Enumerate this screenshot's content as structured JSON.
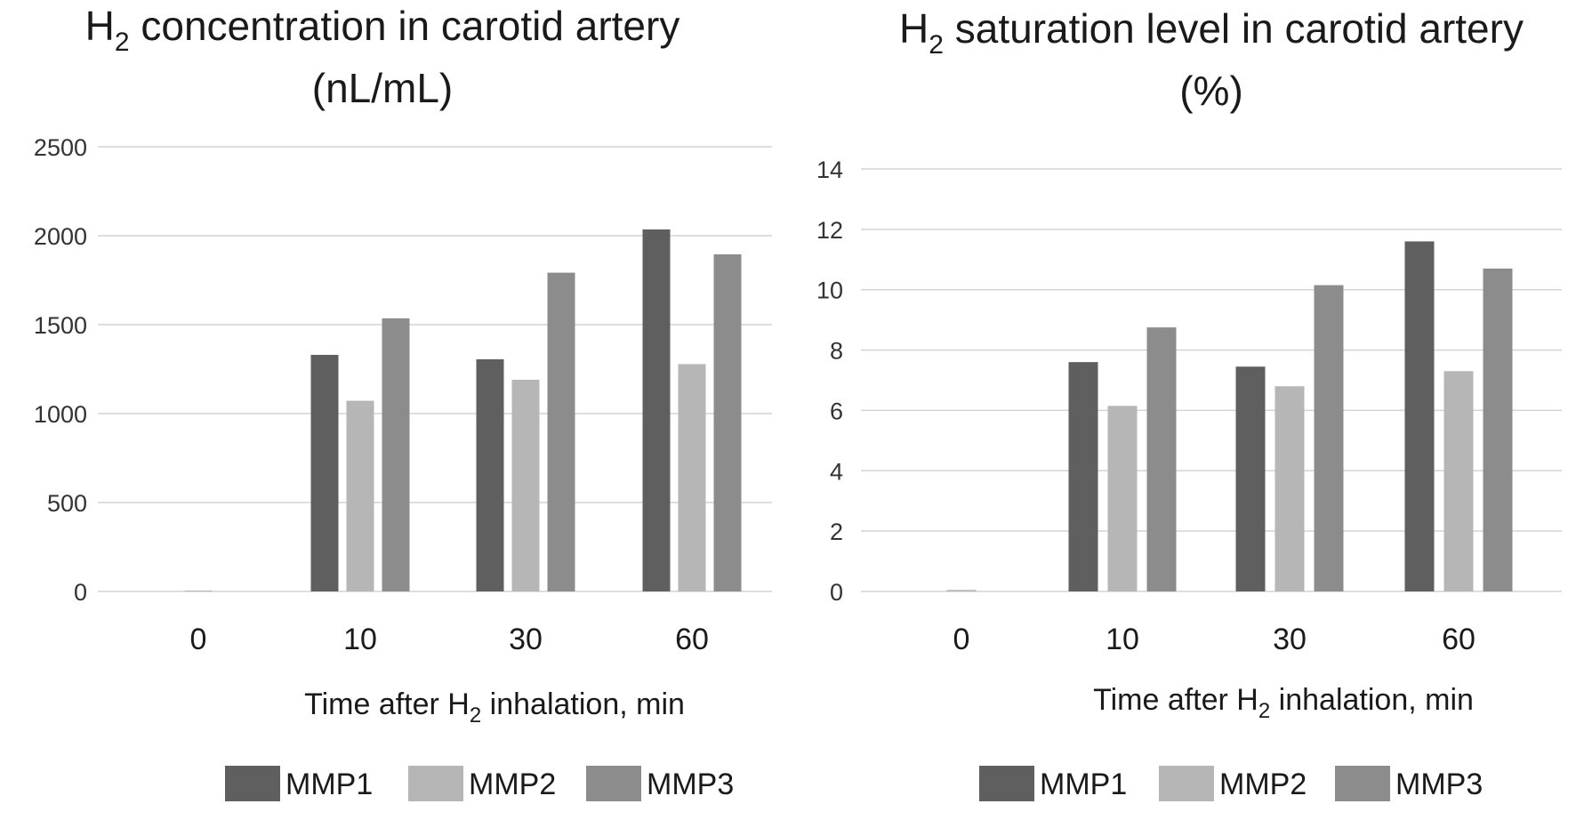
{
  "chart_data": [
    {
      "type": "bar",
      "title": "H2 concentration in carotid artery (nL/mL)",
      "title_parts": {
        "main": "H",
        "sub": "2",
        "rest": " concentration in carotid artery",
        "line2": "(nL/mL)"
      },
      "categories": [
        "0",
        "10",
        "30",
        "60"
      ],
      "series": [
        {
          "name": "MMP1",
          "color": "#5f5f5f",
          "values": [
            0,
            1330,
            1305,
            2035
          ]
        },
        {
          "name": "MMP2",
          "color": "#b6b6b6",
          "values": [
            5,
            1072,
            1190,
            1278
          ]
        },
        {
          "name": "MMP3",
          "color": "#8c8c8c",
          "values": [
            0,
            1535,
            1792,
            1895
          ]
        }
      ],
      "yticks": [
        "0",
        "500",
        "1000",
        "1500",
        "2000",
        "2500"
      ],
      "ylim": [
        0,
        2500
      ],
      "xlabel": "Time after H2 inhalation, min",
      "xlabel_parts": {
        "pre": "Time  after H",
        "sub": "2",
        "post": "  inhalation,  min"
      },
      "ylabel": "",
      "legend": "bottom",
      "grid": true
    },
    {
      "type": "bar",
      "title": "H2 saturation level in carotid artery (%)",
      "title_parts": {
        "main": "H",
        "sub": "2",
        "rest": " saturation level in carotid artery",
        "line2": "(%)"
      },
      "categories": [
        "0",
        "10",
        "30",
        "60"
      ],
      "series": [
        {
          "name": "MMP1",
          "color": "#5f5f5f",
          "values": [
            0,
            7.6,
            7.45,
            11.6
          ]
        },
        {
          "name": "MMP2",
          "color": "#b6b6b6",
          "values": [
            0.05,
            6.15,
            6.8,
            7.3
          ]
        },
        {
          "name": "MMP3",
          "color": "#8c8c8c",
          "values": [
            0,
            8.75,
            10.15,
            10.7
          ]
        }
      ],
      "yticks": [
        "0",
        "2",
        "4",
        "6",
        "8",
        "10",
        "12",
        "14"
      ],
      "ylim": [
        0,
        14
      ],
      "xlabel": "Time after H2 inhalation, min",
      "xlabel_parts": {
        "pre": "Time  after H",
        "sub": "2",
        "post": "  inhalation,  min"
      },
      "ylabel": "",
      "legend": "bottom",
      "grid": true
    }
  ]
}
